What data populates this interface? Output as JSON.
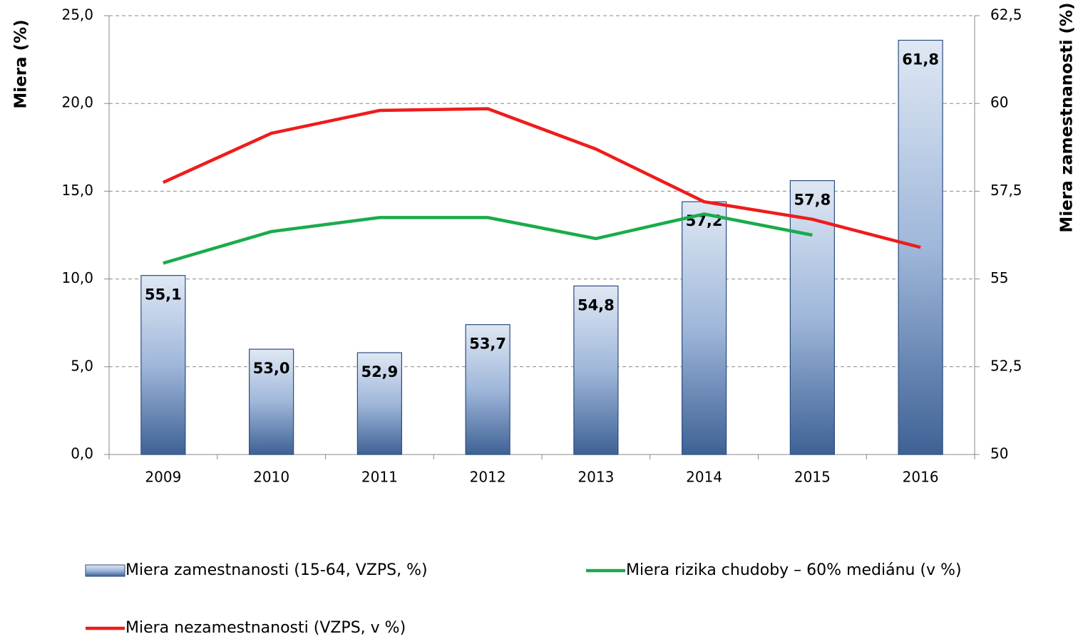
{
  "chart_data": {
    "type": "bar-line",
    "y_label": "Miera (%)",
    "y2_label": "Miera zamestnanosti (%)",
    "categories": [
      "2009",
      "2010",
      "2011",
      "2012",
      "2013",
      "2014",
      "2015",
      "2016"
    ],
    "series": [
      {
        "name": "Miera zamestnanosti (15-64, VZPS, %)",
        "type": "bar",
        "axis": "y2",
        "color": "#4f74a8",
        "values": [
          55.1,
          53.0,
          52.9,
          53.7,
          54.8,
          57.2,
          57.8,
          61.8
        ],
        "value_labels": [
          "55,1",
          "53,0",
          "52,9",
          "53,7",
          "54,8",
          "57,2",
          "57,8",
          "61,8"
        ]
      },
      {
        "name": "Miera rizika chudoby – 60% mediánu (v %)",
        "type": "line",
        "color": "#1aab4b",
        "values": [
          10.9,
          12.7,
          13.5,
          13.5,
          12.3,
          13.7,
          12.5,
          null
        ]
      },
      {
        "name": "Miera nezamestnanosti (VZPS, v %)",
        "type": "line",
        "color": "#ee1c1c",
        "values": [
          15.5,
          18.3,
          19.6,
          19.7,
          17.4,
          14.4,
          13.4,
          11.8
        ]
      }
    ],
    "ylim": [
      0,
      25
    ],
    "yticks": [
      {
        "value": 0,
        "label": "0,0"
      },
      {
        "value": 5,
        "label": "5,0"
      },
      {
        "value": 10,
        "label": "10,0"
      },
      {
        "value": 15,
        "label": "15,0"
      },
      {
        "value": 20,
        "label": "20,0"
      },
      {
        "value": 25,
        "label": "25,0"
      }
    ],
    "y2lim": [
      50,
      62.5
    ],
    "y2ticks": [
      50,
      {
        "value": 52.5,
        "label": "52,5"
      },
      55,
      {
        "value": 57.5,
        "label": "57,5"
      },
      60,
      {
        "value": 62.5,
        "label": "62,5"
      }
    ],
    "grid": true
  }
}
